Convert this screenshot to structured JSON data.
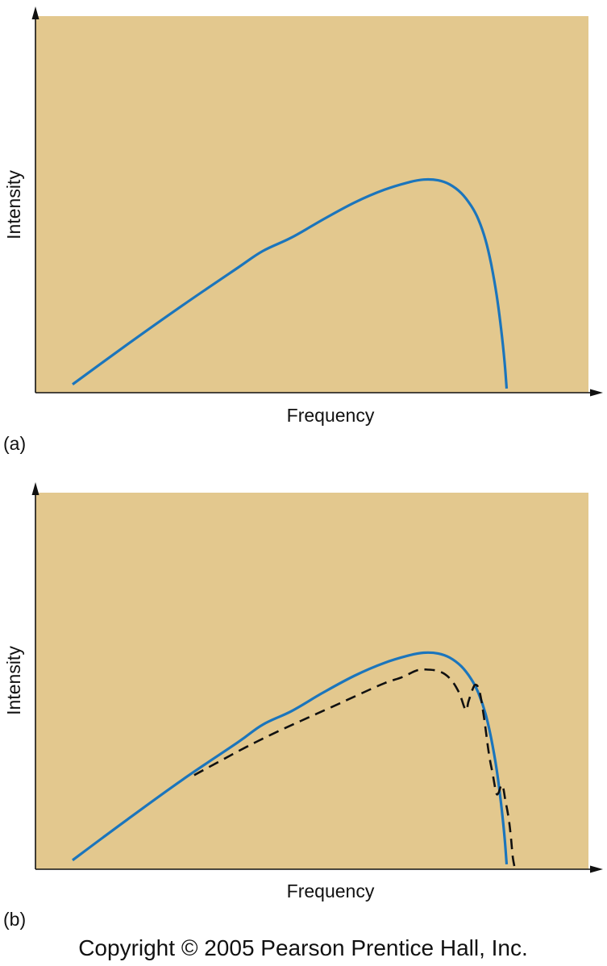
{
  "chart_data": [
    {
      "type": "line",
      "panel_label": "(a)",
      "xlabel": "Frequency",
      "ylabel": "Intensity",
      "xlim": [
        0,
        100
      ],
      "ylim": [
        0,
        100
      ],
      "grid": false,
      "plot_background": "#e3c88e",
      "series": [
        {
          "color": "#1b75bc",
          "style": "solid",
          "points": [
            [
              6.7,
              2.2
            ],
            [
              16.6,
              12.8
            ],
            [
              26.6,
              23.2
            ],
            [
              36.6,
              33.2
            ],
            [
              41.1,
              37.6
            ],
            [
              46.3,
              41.2
            ],
            [
              51.9,
              45.9
            ],
            [
              57.7,
              50.5
            ],
            [
              63.1,
              53.9
            ],
            [
              67.6,
              55.9
            ],
            [
              70.2,
              56.6
            ],
            [
              72.8,
              56.4
            ],
            [
              74.9,
              55.3
            ],
            [
              77.0,
              53.0
            ],
            [
              78.8,
              49.6
            ],
            [
              80.1,
              46.0
            ],
            [
              81.4,
              40.5
            ],
            [
              82.4,
              34.2
            ],
            [
              83.4,
              25.9
            ],
            [
              84.2,
              17.0
            ],
            [
              84.8,
              8.7
            ],
            [
              85.2,
              1.1
            ]
          ]
        }
      ]
    },
    {
      "type": "line",
      "panel_label": "(b)",
      "xlabel": "Frequency",
      "ylabel": "Intensity",
      "xlim": [
        0,
        100
      ],
      "ylim": [
        0,
        100
      ],
      "grid": false,
      "plot_background": "#e3c88e",
      "series": [
        {
          "color": "#1b75bc",
          "style": "solid",
          "points": [
            [
              6.7,
              2.4
            ],
            [
              16.6,
              13.2
            ],
            [
              26.6,
              23.8
            ],
            [
              36.6,
              33.7
            ],
            [
              41.1,
              38.4
            ],
            [
              46.3,
              42.0
            ],
            [
              51.9,
              46.8
            ],
            [
              57.7,
              51.4
            ],
            [
              63.1,
              54.8
            ],
            [
              67.6,
              56.8
            ],
            [
              70.2,
              57.5
            ],
            [
              72.8,
              57.3
            ],
            [
              74.9,
              56.2
            ],
            [
              77.0,
              53.9
            ],
            [
              78.8,
              50.5
            ],
            [
              80.1,
              46.8
            ],
            [
              81.4,
              41.2
            ],
            [
              82.4,
              34.8
            ],
            [
              83.4,
              26.5
            ],
            [
              84.2,
              17.4
            ],
            [
              84.8,
              9.0
            ],
            [
              85.2,
              1.3
            ]
          ]
        },
        {
          "color": "#111111",
          "style": "dashed",
          "points": [
            [
              28.7,
              25.0
            ],
            [
              33.1,
              28.5
            ],
            [
              37.9,
              32.3
            ],
            [
              42.7,
              35.8
            ],
            [
              48.0,
              39.4
            ],
            [
              53.3,
              42.9
            ],
            [
              58.5,
              46.4
            ],
            [
              63.1,
              49.4
            ],
            [
              66.3,
              51.0
            ],
            [
              69.0,
              52.8
            ],
            [
              71.1,
              53.0
            ],
            [
              73.3,
              52.4
            ],
            [
              75.1,
              50.4
            ],
            [
              76.6,
              46.9
            ],
            [
              77.8,
              42.3
            ],
            [
              78.3,
              44.5
            ],
            [
              79.0,
              47.6
            ],
            [
              79.6,
              49.0
            ],
            [
              80.3,
              47.2
            ],
            [
              81.1,
              40.5
            ],
            [
              82.0,
              30.7
            ],
            [
              82.7,
              25.2
            ],
            [
              83.3,
              20.4
            ],
            [
              83.7,
              20.2
            ],
            [
              84.4,
              22.4
            ],
            [
              85.0,
              18.1
            ],
            [
              85.6,
              13.2
            ],
            [
              86.0,
              8.1
            ],
            [
              86.3,
              3.4
            ],
            [
              86.6,
              0.8
            ]
          ]
        }
      ]
    }
  ],
  "copyright": "Copyright © 2005 Pearson Prentice Hall, Inc."
}
